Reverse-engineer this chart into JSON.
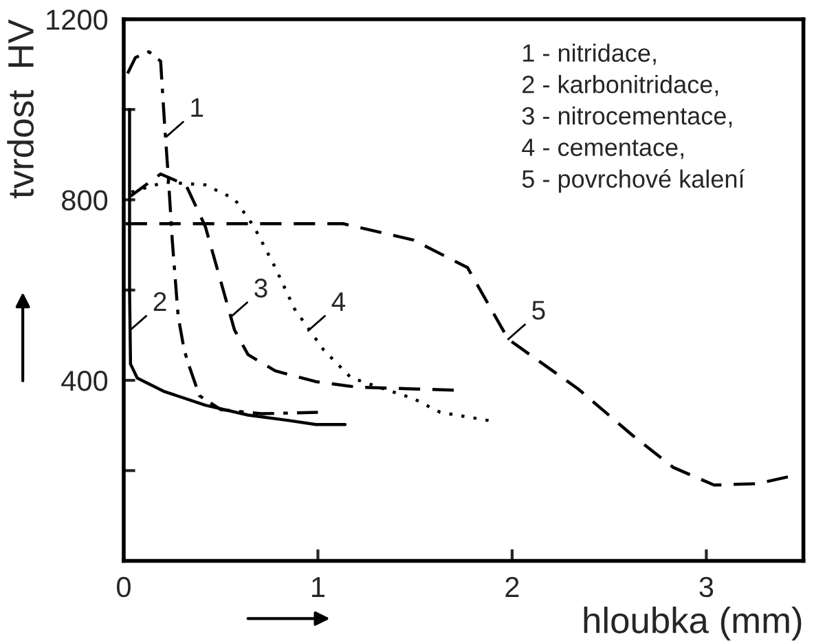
{
  "chart_data": {
    "type": "line",
    "xlabel": "hloubka (mm)",
    "ylabel": "tvrdost  HV",
    "xlim": [
      0,
      3.5
    ],
    "xticks": [
      0,
      1,
      2,
      3
    ],
    "ylim": [
      0,
      1200
    ],
    "yticks": [
      {
        "value": 200,
        "label": null
      },
      400,
      {
        "value": 600,
        "label": null
      },
      800,
      {
        "value": 1000,
        "label": null
      },
      1200
    ],
    "grid": false,
    "legend": false,
    "series": [
      {
        "color": "#000000",
        "line_style": "dashdot",
        "x": [
          0.02,
          0.06,
          0.13,
          0.19,
          0.21,
          0.23,
          0.25,
          0.28,
          0.31,
          0.33,
          0.39,
          0.5,
          0.71,
          1.0
        ],
        "values": [
          1080,
          1115,
          1128,
          1107,
          970,
          848,
          710,
          543,
          470,
          440,
          366,
          335,
          326,
          329
        ]
      },
      {
        "color": "#000000",
        "line_style": "solid",
        "x": [
          0.03,
          0.03,
          0.035,
          0.07,
          0.21,
          0.42,
          0.64,
          0.85,
          0.99,
          1.14
        ],
        "values": [
          1000,
          600,
          436,
          405,
          375,
          345,
          323,
          311,
          302,
          302
        ]
      },
      {
        "color": "#000000",
        "line_style": "dashed",
        "x": [
          0.035,
          0.19,
          0.32,
          0.42,
          0.5,
          0.57,
          0.64,
          0.78,
          0.99,
          1.2,
          1.49,
          1.72
        ],
        "values": [
          808,
          857,
          833,
          741,
          619,
          512,
          457,
          421,
          397,
          385,
          381,
          378
        ]
      },
      {
        "color": "#000000",
        "line_style": "dotted",
        "x": [
          0.04,
          0.21,
          0.42,
          0.57,
          0.67,
          0.78,
          0.88,
          1.03,
          1.17,
          1.34,
          1.49,
          1.63,
          1.88
        ],
        "values": [
          817,
          839,
          833,
          802,
          741,
          650,
          558,
          467,
          406,
          381,
          360,
          329,
          311
        ]
      },
      {
        "color": "#000000",
        "line_style": "dashed",
        "x": [
          0.01,
          0.5,
          1.13,
          1.49,
          1.77,
          1.98,
          2.34,
          2.62,
          2.83,
          3.04,
          3.26,
          3.42
        ],
        "values": [
          747,
          747,
          747,
          711,
          650,
          491,
          381,
          278,
          207,
          168,
          171,
          186
        ]
      }
    ],
    "annotations": [
      {
        "text": "1",
        "x": 0.22,
        "y": 940
      },
      {
        "text": "2",
        "x": 0.03,
        "y": 510
      },
      {
        "text": "3",
        "x": 0.55,
        "y": 540
      },
      {
        "text": "4",
        "x": 0.95,
        "y": 510
      },
      {
        "text": "5",
        "x": 1.98,
        "y": 491
      },
      "1 - nitridace,",
      "2 - karbonitridace,",
      "3 - nitrocementace,",
      "4 - cementace,",
      "5 - povrchové kalení"
    ]
  }
}
